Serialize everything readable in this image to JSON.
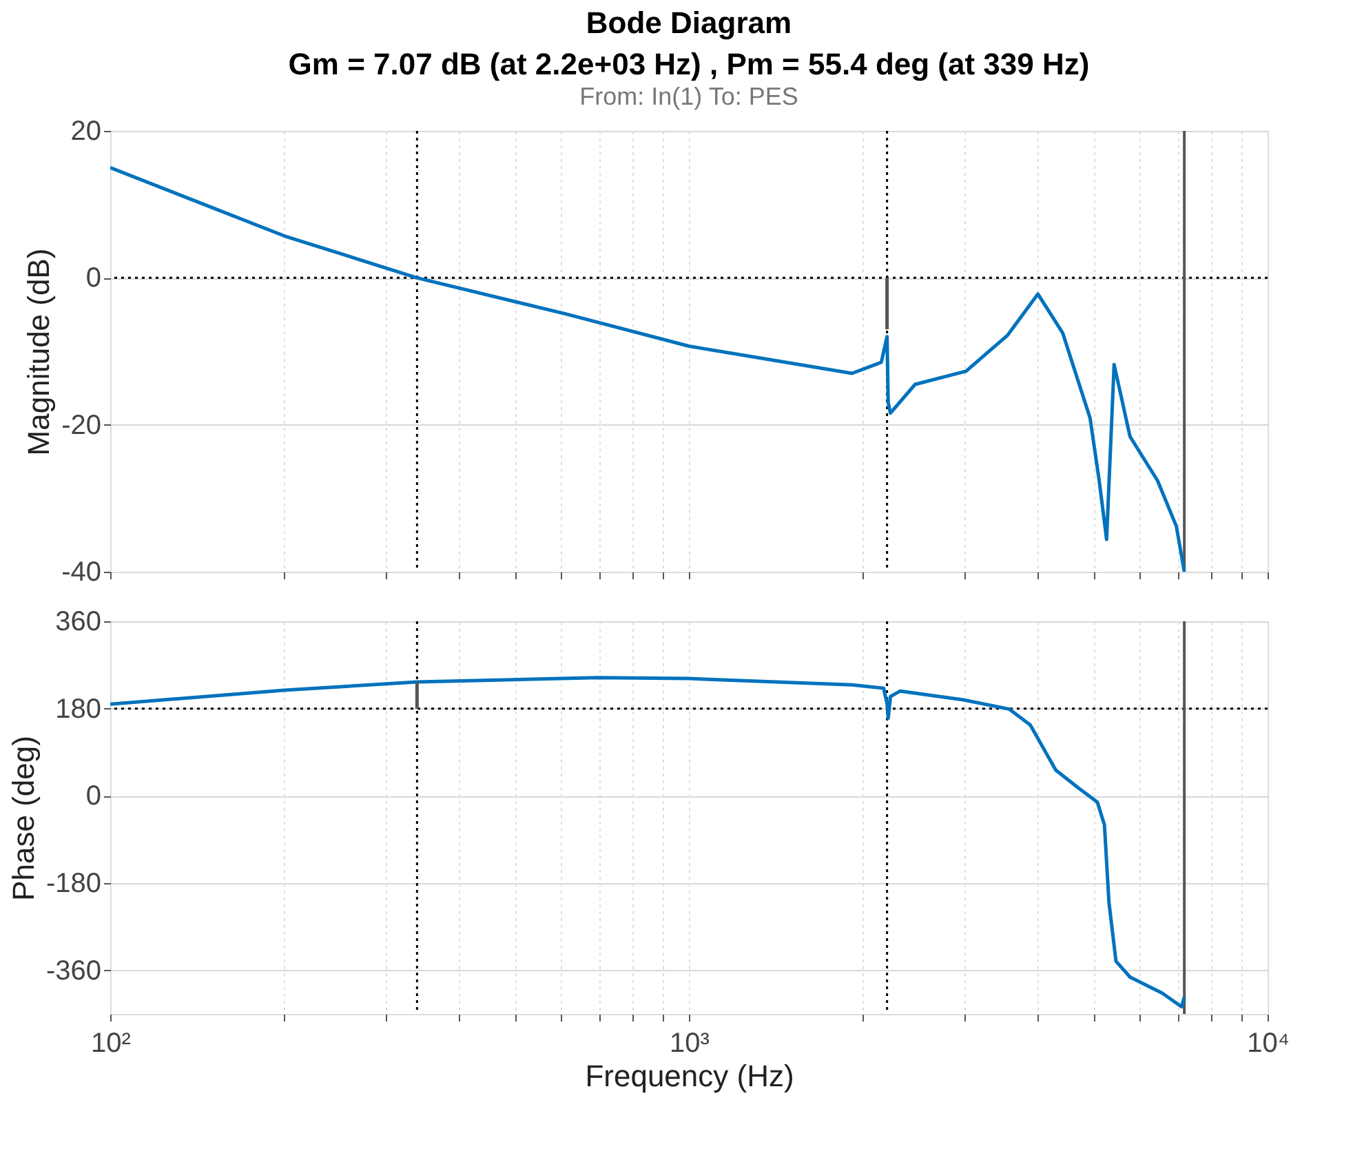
{
  "chart_data": [
    {
      "type": "line",
      "title": "Bode Diagram",
      "subtitle": "Gm = 7.07 dB (at 2.2e+03 Hz) ,  Pm = 55.4 deg (at 339 Hz)",
      "annotations": [
        "From: In(1)  To: PES"
      ],
      "ylabel": "Magnitude (dB)",
      "series": [
        {
          "color": "#0072bd",
          "x": [
            100,
            200,
            339,
            612,
            1000,
            1914,
            2150,
            2200,
            2210,
            2230,
            2460,
            3013,
            3555,
            4010,
            4425,
            4935,
            5117,
            5270,
            5430,
            5785,
            6455,
            6955,
            7180
          ],
          "values": [
            15,
            5.7,
            0,
            -4.9,
            -9.3,
            -13,
            -11.5,
            -8,
            -17,
            -18.4,
            -14.5,
            -12.7,
            -7.8,
            -2.2,
            -7.5,
            -19.1,
            -27.6,
            -35.6,
            -11.8,
            -21.6,
            -27.6,
            -33.8,
            -40
          ]
        },
        {
          "color": "#555555",
          "x": [
            2200,
            2200
          ],
          "values": [
            0,
            -7
          ]
        }
      ],
      "xlim": [
        100,
        10000
      ],
      "xticks": [
        {
          "value": 100,
          "label": null
        },
        {
          "value": 200,
          "label": null
        },
        {
          "value": 300,
          "label": null
        },
        {
          "value": 400,
          "label": null
        },
        {
          "value": 500,
          "label": null
        },
        {
          "value": 600,
          "label": null
        },
        {
          "value": 700,
          "label": null
        },
        {
          "value": 800,
          "label": null
        },
        {
          "value": 900,
          "label": null
        },
        {
          "value": 1000,
          "label": null
        },
        {
          "value": 2000,
          "label": null
        },
        {
          "value": 3000,
          "label": null
        },
        {
          "value": 4000,
          "label": null
        },
        {
          "value": 5000,
          "label": null
        },
        {
          "value": 6000,
          "label": null
        },
        {
          "value": 7000,
          "label": null
        },
        {
          "value": 8000,
          "label": null
        },
        {
          "value": 9000,
          "label": null
        },
        {
          "value": 10000,
          "label": null
        }
      ],
      "ylim": [
        -40,
        20
      ],
      "yticks": [
        -40,
        -20,
        0,
        20
      ],
      "log": "x",
      "grid": true,
      "tick_labels": "y",
      "ref_lines": [
        {
          "axis": "y",
          "value": 0,
          "color": "#000000",
          "line_style": "dotted"
        },
        {
          "axis": "x",
          "value": 339,
          "color": "#000000",
          "line_style": "dotted"
        },
        {
          "axis": "x",
          "value": 2200,
          "color": "#000000",
          "line_style": "dotted"
        },
        {
          "axis": "x",
          "value": 7180,
          "color": "#555555",
          "line_style": "solid"
        }
      ]
    },
    {
      "type": "line",
      "xlabel": "Frequency  (Hz)",
      "ylabel": "Phase (deg)",
      "series": [
        {
          "color": "#0072bd",
          "x": [
            100,
            200,
            339,
            695,
            1000,
            1914,
            2170,
            2200,
            2210,
            2230,
            2316,
            2980,
            3575,
            3890,
            4305,
            4725,
            5080,
            5225,
            5320,
            5470,
            5785,
            6575,
            7100,
            7180
          ],
          "values": [
            189,
            218,
            235,
            244,
            242,
            229,
            222,
            190,
            160,
            205,
            216,
            198,
            179,
            146,
            53,
            15,
            -13,
            -60,
            -220,
            -341,
            -374,
            -407,
            -435,
            -415
          ]
        },
        {
          "color": "#555555",
          "x": [
            339,
            339
          ],
          "values": [
            180,
            235
          ]
        }
      ],
      "xlim": [
        100,
        10000
      ],
      "xticks": [
        {
          "value": 100,
          "label": "10²"
        },
        {
          "value": 200,
          "label": null
        },
        {
          "value": 300,
          "label": null
        },
        {
          "value": 400,
          "label": null
        },
        {
          "value": 500,
          "label": null
        },
        {
          "value": 600,
          "label": null
        },
        {
          "value": 700,
          "label": null
        },
        {
          "value": 800,
          "label": null
        },
        {
          "value": 900,
          "label": null
        },
        {
          "value": 1000,
          "label": "10³"
        },
        {
          "value": 2000,
          "label": null
        },
        {
          "value": 3000,
          "label": null
        },
        {
          "value": 4000,
          "label": null
        },
        {
          "value": 5000,
          "label": null
        },
        {
          "value": 6000,
          "label": null
        },
        {
          "value": 7000,
          "label": null
        },
        {
          "value": 8000,
          "label": null
        },
        {
          "value": 9000,
          "label": null
        },
        {
          "value": 10000,
          "label": "10⁴"
        }
      ],
      "ylim": [
        -450,
        360
      ],
      "yticks": [
        -360,
        -180,
        0,
        180,
        360
      ],
      "log": "x",
      "grid": true,
      "ref_lines": [
        {
          "axis": "y",
          "value": 180,
          "color": "#000000",
          "line_style": "dotted"
        },
        {
          "axis": "x",
          "value": 339,
          "color": "#000000",
          "line_style": "dotted"
        },
        {
          "axis": "x",
          "value": 2200,
          "color": "#000000",
          "line_style": "dotted"
        },
        {
          "axis": "x",
          "value": 7180,
          "color": "#555555",
          "line_style": "solid"
        }
      ]
    }
  ]
}
